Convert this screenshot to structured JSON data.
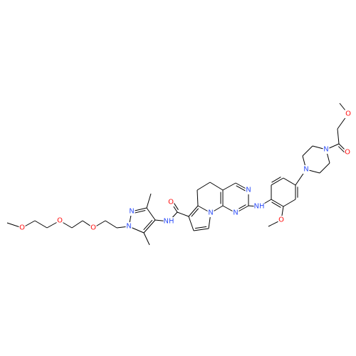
{
  "atoms": [
    "O",
    "O",
    "O",
    "N",
    "N",
    "NH",
    "O",
    "N",
    "N",
    "N",
    "NH",
    "O",
    "N",
    "N",
    "O",
    "O"
  ]
}
